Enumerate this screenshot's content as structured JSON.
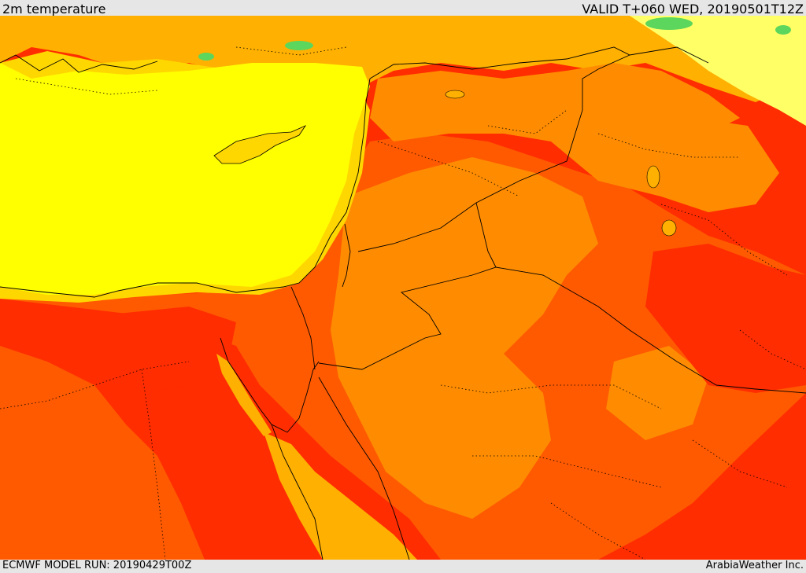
{
  "header": {
    "title": "2m temperature",
    "valid": "VALID T+060 WED, 20190501T12Z"
  },
  "footer": {
    "model_run": "ECMWF MODEL RUN: 20190429T00Z",
    "brand": "ArabiaWeather Inc."
  },
  "map": {
    "variable": "2m temperature",
    "palette": {
      "green": "#5cd65c",
      "light-yellow": "#ffff66",
      "yellow": "#ffff00",
      "gold": "#ffd700",
      "amber": "#ffb000",
      "orange": "#ff8c00",
      "red-orange": "#ff5a00",
      "red": "#ff2d00"
    },
    "borders": "black solid (coast/frontiers) and dotted (internal boundaries)"
  }
}
